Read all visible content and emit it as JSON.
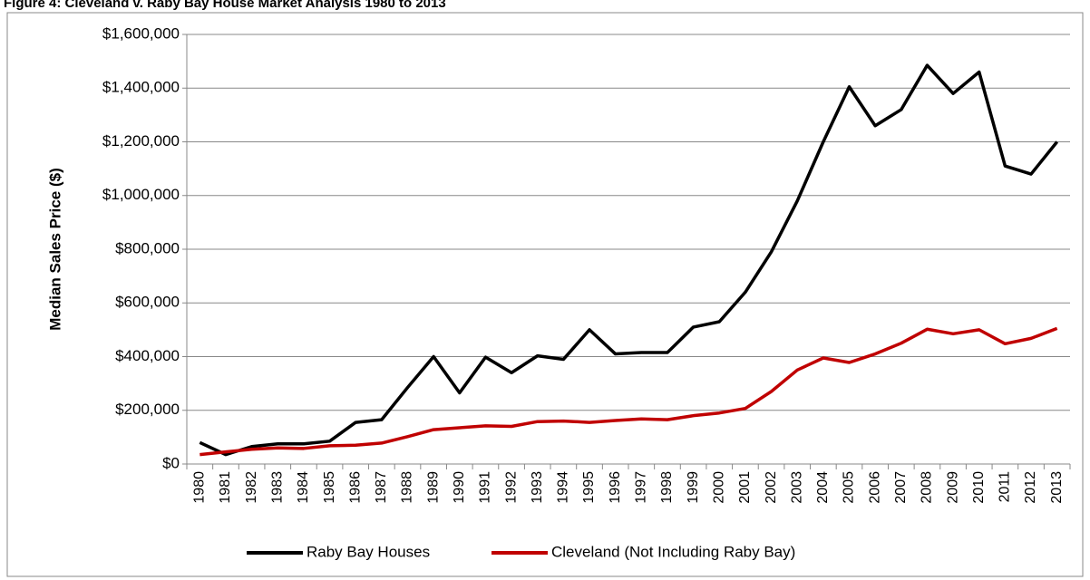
{
  "chart_data": {
    "type": "line",
    "title": "Figure 4: Cleveland v. Raby Bay House Market Analysis 1980 to 2013",
    "y_label": "Median Sales Price ($)",
    "categories": [
      "1980",
      "1981",
      "1982",
      "1983",
      "1984",
      "1985",
      "1986",
      "1987",
      "1988",
      "1989",
      "1990",
      "1991",
      "1992",
      "1993",
      "1994",
      "1995",
      "1996",
      "1997",
      "1998",
      "1999",
      "2000",
      "2001",
      "2002",
      "2003",
      "2004",
      "2005",
      "2006",
      "2007",
      "2008",
      "2009",
      "2010",
      "2011",
      "2012",
      "2013"
    ],
    "series": [
      {
        "name": "Raby Bay Houses",
        "color": "#000000",
        "values": [
          80000,
          35000,
          65000,
          75000,
          75000,
          85000,
          155000,
          165000,
          285000,
          400000,
          265000,
          398000,
          340000,
          403000,
          390000,
          500000,
          410000,
          415000,
          415000,
          510000,
          530000,
          640000,
          790000,
          980000,
          1200000,
          1405000,
          1260000,
          1320000,
          1485000,
          1380000,
          1460000,
          1110000,
          1080000,
          1200000
        ]
      },
      {
        "name": "Cleveland (Not Including Raby Bay)",
        "color": "#c00000",
        "values": [
          35000,
          45000,
          55000,
          60000,
          58000,
          68000,
          70000,
          78000,
          102000,
          128000,
          135000,
          142000,
          140000,
          158000,
          160000,
          155000,
          162000,
          168000,
          165000,
          180000,
          190000,
          207000,
          270000,
          350000,
          395000,
          378000,
          410000,
          450000,
          502000,
          485000,
          500000,
          448000,
          468000,
          505000
        ]
      }
    ],
    "ylim": [
      0,
      1600000
    ],
    "yticks": [
      {
        "value": 0,
        "label": "$0"
      },
      {
        "value": 200000,
        "label": "$200,000"
      },
      {
        "value": 400000,
        "label": "$400,000"
      },
      {
        "value": 600000,
        "label": "$600,000"
      },
      {
        "value": 800000,
        "label": "$800,000"
      },
      {
        "value": 1000000,
        "label": "$1,000,000"
      },
      {
        "value": 1200000,
        "label": "$1,200,000"
      },
      {
        "value": 1400000,
        "label": "$1,400,000"
      },
      {
        "value": 1600000,
        "label": "$1,600,000"
      }
    ],
    "grid": true,
    "legend": "bottom"
  }
}
